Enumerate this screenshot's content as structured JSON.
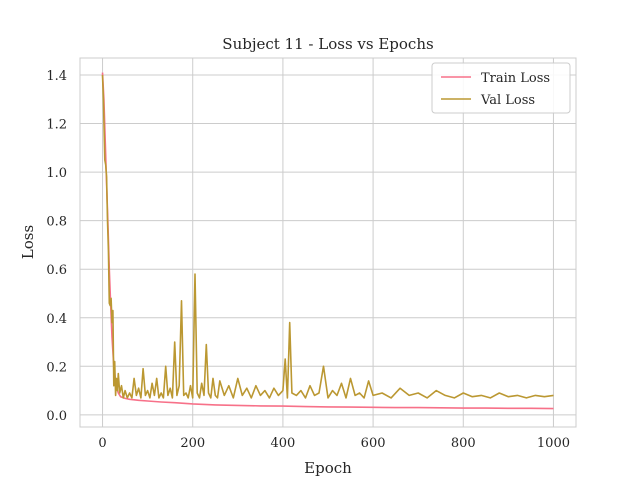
{
  "chart_data": {
    "type": "line",
    "title": "Subject 11 - Loss vs Epochs",
    "xlabel": "Epoch",
    "ylabel": "Loss",
    "xlim": [
      -50,
      1050
    ],
    "ylim": [
      -0.05,
      1.47
    ],
    "xticks": [
      0,
      200,
      400,
      600,
      800,
      1000
    ],
    "xtick_labels": [
      "0",
      "200",
      "400",
      "600",
      "800",
      "1000"
    ],
    "yticks": [
      0.0,
      0.2,
      0.4,
      0.6,
      0.8,
      1.0,
      1.2,
      1.4
    ],
    "ytick_labels": [
      "0.0",
      "0.2",
      "0.4",
      "0.6",
      "0.8",
      "1.0",
      "1.2",
      "1.4"
    ],
    "grid": true,
    "legend_position": "top-right",
    "series": [
      {
        "name": "Train Loss",
        "color": "#f77189",
        "x": [
          0,
          3,
          6,
          9,
          12,
          15,
          18,
          21,
          25,
          30,
          35,
          40,
          50,
          60,
          80,
          100,
          130,
          160,
          200,
          250,
          300,
          350,
          400,
          450,
          500,
          550,
          600,
          650,
          700,
          750,
          800,
          850,
          900,
          950,
          1000
        ],
        "y": [
          1.41,
          1.3,
          1.12,
          0.95,
          0.78,
          0.6,
          0.45,
          0.32,
          0.2,
          0.12,
          0.09,
          0.075,
          0.068,
          0.064,
          0.06,
          0.057,
          0.053,
          0.05,
          0.045,
          0.041,
          0.039,
          0.037,
          0.036,
          0.034,
          0.033,
          0.032,
          0.031,
          0.03,
          0.03,
          0.029,
          0.028,
          0.028,
          0.027,
          0.027,
          0.026
        ]
      },
      {
        "name": "Val Loss",
        "color": "#bb9832",
        "x": [
          0,
          2,
          5,
          7,
          9,
          11,
          13,
          15,
          17,
          19,
          21,
          23,
          25,
          27,
          29,
          31,
          33,
          35,
          38,
          42,
          46,
          50,
          55,
          60,
          65,
          70,
          75,
          80,
          85,
          90,
          95,
          100,
          105,
          110,
          115,
          120,
          125,
          130,
          135,
          140,
          145,
          150,
          155,
          160,
          165,
          170,
          175,
          180,
          185,
          190,
          195,
          200,
          205,
          210,
          215,
          220,
          225,
          230,
          235,
          240,
          245,
          250,
          255,
          260,
          270,
          280,
          290,
          300,
          310,
          320,
          330,
          340,
          350,
          360,
          370,
          380,
          390,
          400,
          405,
          410,
          415,
          420,
          430,
          440,
          450,
          460,
          470,
          480,
          490,
          500,
          510,
          520,
          530,
          540,
          550,
          560,
          570,
          580,
          590,
          600,
          620,
          640,
          660,
          680,
          700,
          720,
          740,
          760,
          780,
          800,
          820,
          840,
          860,
          880,
          900,
          920,
          940,
          960,
          980,
          1000
        ],
        "y": [
          1.4,
          1.3,
          1.05,
          1.03,
          0.98,
          0.8,
          0.68,
          0.46,
          0.45,
          0.48,
          0.38,
          0.43,
          0.12,
          0.22,
          0.08,
          0.15,
          0.1,
          0.17,
          0.09,
          0.12,
          0.07,
          0.1,
          0.07,
          0.09,
          0.07,
          0.15,
          0.08,
          0.11,
          0.07,
          0.19,
          0.08,
          0.1,
          0.07,
          0.13,
          0.08,
          0.15,
          0.07,
          0.09,
          0.07,
          0.2,
          0.08,
          0.11,
          0.07,
          0.3,
          0.08,
          0.12,
          0.47,
          0.08,
          0.09,
          0.07,
          0.12,
          0.07,
          0.58,
          0.09,
          0.07,
          0.13,
          0.08,
          0.29,
          0.09,
          0.07,
          0.15,
          0.08,
          0.07,
          0.14,
          0.08,
          0.12,
          0.07,
          0.15,
          0.08,
          0.11,
          0.07,
          0.12,
          0.08,
          0.1,
          0.07,
          0.11,
          0.08,
          0.1,
          0.23,
          0.07,
          0.38,
          0.09,
          0.08,
          0.1,
          0.07,
          0.12,
          0.08,
          0.09,
          0.2,
          0.07,
          0.1,
          0.08,
          0.13,
          0.07,
          0.15,
          0.08,
          0.09,
          0.07,
          0.14,
          0.08,
          0.09,
          0.07,
          0.11,
          0.08,
          0.09,
          0.07,
          0.1,
          0.08,
          0.07,
          0.09,
          0.075,
          0.08,
          0.07,
          0.09,
          0.075,
          0.08,
          0.07,
          0.08,
          0.075,
          0.08
        ]
      }
    ]
  }
}
